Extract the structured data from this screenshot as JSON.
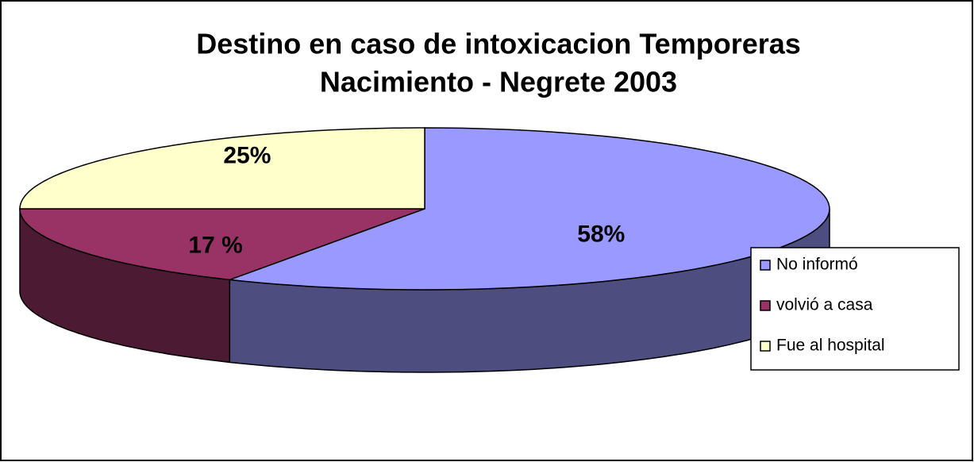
{
  "chart_data": {
    "type": "pie3d",
    "title": [
      "Destino en caso de intoxicacion Temporeras",
      "Nacimiento - Negrete 2003"
    ],
    "categories": [
      "No informó",
      "volvió a casa",
      "Fue al hospital"
    ],
    "values": [
      58,
      17,
      25
    ],
    "value_labels": [
      "58%",
      "17 %",
      "25%"
    ],
    "colors": [
      "#9999ff",
      "#993366",
      "#ffffcc"
    ],
    "legend": "right"
  }
}
